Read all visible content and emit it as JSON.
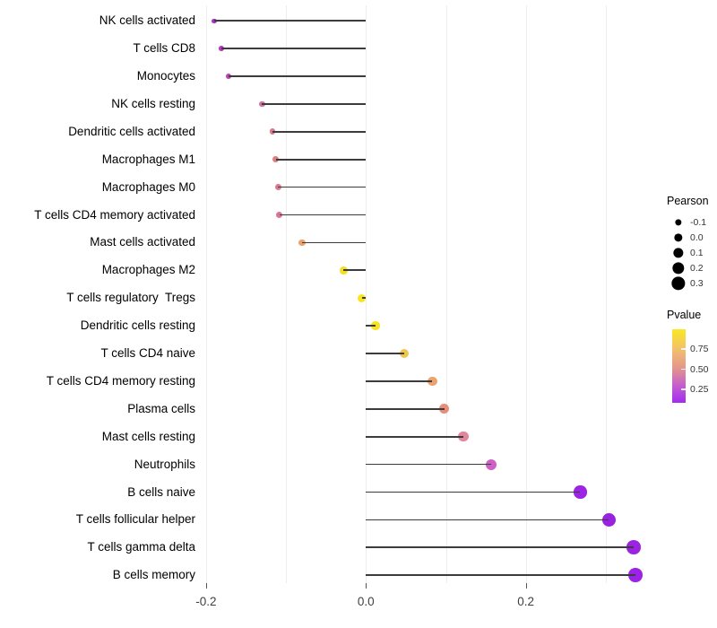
{
  "figure": {
    "background": "#ffffff"
  },
  "chart_data": {
    "type": "lollipop",
    "orientation": "horizontal",
    "title": "",
    "xlabel": "",
    "ylabel": "",
    "grid": true,
    "legend_position": "right",
    "segment_color": "#3C3C3C",
    "x_axis": {
      "tick_labels": [
        "-0.2",
        "0.0",
        "0.2"
      ],
      "tick_values": [
        -0.2,
        0.0,
        0.2
      ],
      "gridline_values": [
        -0.2,
        -0.1,
        0.0,
        0.1,
        0.2,
        0.3
      ],
      "range": [
        -0.215,
        0.36
      ]
    },
    "size_legend": {
      "title": "Pearson",
      "labels": [
        "-0.1",
        "0.0",
        "0.1",
        "0.2",
        "0.3"
      ],
      "values": [
        -0.1,
        0.0,
        0.1,
        0.2,
        0.3
      ],
      "dot_color": "#000000"
    },
    "color_legend": {
      "title": "Pvalue",
      "tick_labels": [
        "0.75",
        "0.50",
        "0.25"
      ],
      "tick_values": [
        0.75,
        0.5,
        0.25
      ],
      "range": [
        0.07,
        0.99
      ],
      "gradient_stops": [
        {
          "pos": 0.0,
          "color": "#F9E822"
        },
        {
          "pos": 0.27,
          "color": "#F2C16C"
        },
        {
          "pos": 0.52,
          "color": "#E4988A"
        },
        {
          "pos": 0.77,
          "color": "#C55DD0"
        },
        {
          "pos": 1.0,
          "color": "#A12CF0"
        }
      ]
    },
    "points": [
      {
        "label": "NK cells activated",
        "pearson": -0.19,
        "pvalue_approx": 0.21,
        "color": "#AC30C6"
      },
      {
        "label": "T cells CD8",
        "pearson": -0.181,
        "pvalue_approx": 0.23,
        "color": "#B53ABD"
      },
      {
        "label": "Monocytes",
        "pearson": -0.172,
        "pvalue_approx": 0.26,
        "color": "#BD45B2"
      },
      {
        "label": "NK cells resting",
        "pearson": -0.13,
        "pvalue_approx": 0.45,
        "color": "#D4709E"
      },
      {
        "label": "Dendritic cells activated",
        "pearson": -0.117,
        "pvalue_approx": 0.5,
        "color": "#DA798E"
      },
      {
        "label": "Macrophages M1",
        "pearson": -0.113,
        "pvalue_approx": 0.53,
        "color": "#DC7E88"
      },
      {
        "label": "Macrophages M0",
        "pearson": -0.11,
        "pvalue_approx": 0.51,
        "color": "#DA7A8E"
      },
      {
        "label": "T cells CD4 memory activated",
        "pearson": -0.108,
        "pvalue_approx": 0.49,
        "color": "#D87695"
      },
      {
        "label": "Mast cells activated",
        "pearson": -0.08,
        "pvalue_approx": 0.67,
        "color": "#ECA26C"
      },
      {
        "label": "Macrophages M2",
        "pearson": -0.028,
        "pvalue_approx": 0.88,
        "color": "#F4DE26"
      },
      {
        "label": "T cells regulatory  Tregs",
        "pearson": -0.005,
        "pvalue_approx": 0.97,
        "color": "#F8E51C"
      },
      {
        "label": "Dendritic cells resting",
        "pearson": 0.012,
        "pvalue_approx": 0.94,
        "color": "#F8E320"
      },
      {
        "label": "T cells CD4 naive",
        "pearson": 0.048,
        "pvalue_approx": 0.8,
        "color": "#EFC74E"
      },
      {
        "label": "T cells CD4 memory resting",
        "pearson": 0.083,
        "pvalue_approx": 0.67,
        "color": "#ECA26C"
      },
      {
        "label": "Plasma cells",
        "pearson": 0.098,
        "pvalue_approx": 0.61,
        "color": "#E68E7A"
      },
      {
        "label": "Mast cells resting",
        "pearson": 0.122,
        "pvalue_approx": 0.47,
        "color": "#E0879E"
      },
      {
        "label": "Neutrophils",
        "pearson": 0.157,
        "pvalue_approx": 0.31,
        "color": "#CD61C6"
      },
      {
        "label": "B cells naive",
        "pearson": 0.268,
        "pvalue_approx": 0.13,
        "color": "#9D24E4"
      },
      {
        "label": "T cells follicular helper",
        "pearson": 0.304,
        "pvalue_approx": 0.11,
        "color": "#9822DF"
      },
      {
        "label": "T cells gamma delta",
        "pearson": 0.335,
        "pvalue_approx": 0.1,
        "color": "#9C23E2"
      },
      {
        "label": "B cells memory",
        "pearson": 0.337,
        "pvalue_approx": 0.1,
        "color": "#9D22E7"
      }
    ]
  }
}
